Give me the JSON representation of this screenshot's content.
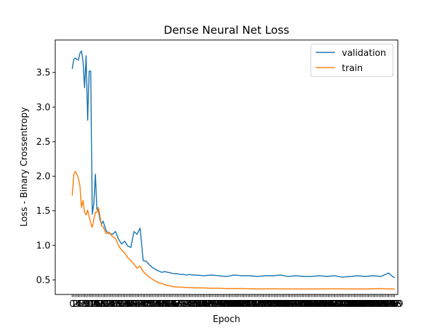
{
  "chart_data": {
    "type": "line",
    "title": "Dense Neural Net Loss",
    "xlabel": "Epoch",
    "ylabel": "Loss - Binary Crossentropy",
    "xlim": [
      -11,
      211
    ],
    "ylim": [
      0.29,
      3.97
    ],
    "yticks": [
      0.5,
      1.0,
      1.5,
      2.0,
      2.5,
      3.0,
      3.5
    ],
    "ytick_labels": [
      "0.5",
      "1.0",
      "1.5",
      "2.0",
      "2.5",
      "3.0",
      "3.5"
    ],
    "x_tick_every": 1,
    "grid": false,
    "legend_position": "top-right",
    "series": [
      {
        "name": "validation",
        "color": "#1f77b4",
        "x": [
          0,
          1,
          2,
          3,
          4,
          5,
          6,
          7,
          8,
          9,
          10,
          11,
          12,
          13,
          14,
          15,
          16,
          17,
          18,
          19,
          20,
          22,
          24,
          26,
          28,
          30,
          32,
          34,
          36,
          38,
          40,
          42,
          44,
          46,
          48,
          50,
          52,
          54,
          56,
          58,
          60,
          62,
          64,
          66,
          68,
          70,
          72,
          74,
          76,
          78,
          80,
          85,
          90,
          95,
          100,
          105,
          110,
          115,
          120,
          125,
          130,
          135,
          140,
          145,
          150,
          155,
          160,
          165,
          170,
          175,
          180,
          185,
          190,
          195,
          200,
          205,
          207,
          209
        ],
        "values": [
          3.55,
          3.69,
          3.71,
          3.69,
          3.68,
          3.78,
          3.81,
          3.66,
          3.28,
          3.74,
          2.81,
          3.52,
          3.52,
          1.45,
          1.6,
          2.03,
          1.52,
          1.5,
          1.37,
          1.31,
          1.35,
          1.21,
          1.17,
          1.16,
          1.2,
          1.09,
          1.02,
          1.06,
          0.99,
          0.97,
          1.2,
          1.16,
          1.25,
          0.78,
          0.77,
          0.72,
          0.68,
          0.65,
          0.63,
          0.61,
          0.62,
          0.61,
          0.6,
          0.59,
          0.59,
          0.58,
          0.58,
          0.57,
          0.58,
          0.57,
          0.57,
          0.56,
          0.57,
          0.56,
          0.55,
          0.57,
          0.56,
          0.56,
          0.55,
          0.56,
          0.56,
          0.57,
          0.55,
          0.56,
          0.55,
          0.55,
          0.56,
          0.55,
          0.56,
          0.54,
          0.55,
          0.56,
          0.55,
          0.56,
          0.55,
          0.6,
          0.56,
          0.53
        ]
      },
      {
        "name": "train",
        "color": "#ff7f0e",
        "x": [
          0,
          1,
          2,
          3,
          4,
          5,
          6,
          7,
          8,
          9,
          10,
          11,
          12,
          13,
          14,
          15,
          16,
          17,
          18,
          19,
          20,
          22,
          24,
          26,
          28,
          30,
          32,
          34,
          36,
          38,
          40,
          42,
          44,
          46,
          48,
          50,
          52,
          54,
          56,
          58,
          60,
          62,
          64,
          66,
          68,
          70,
          75,
          80,
          85,
          90,
          95,
          100,
          110,
          120,
          130,
          140,
          150,
          160,
          170,
          180,
          190,
          200,
          205,
          209
        ],
        "values": [
          1.72,
          2.02,
          2.07,
          2.03,
          1.97,
          1.86,
          1.55,
          1.65,
          1.48,
          1.44,
          1.51,
          1.41,
          1.32,
          1.26,
          1.38,
          1.48,
          1.48,
          1.55,
          1.42,
          1.28,
          1.27,
          1.17,
          1.19,
          1.13,
          1.1,
          1.0,
          0.93,
          0.89,
          0.82,
          0.78,
          0.73,
          0.67,
          0.7,
          0.62,
          0.58,
          0.54,
          0.51,
          0.48,
          0.46,
          0.45,
          0.43,
          0.42,
          0.41,
          0.4,
          0.4,
          0.395,
          0.39,
          0.385,
          0.385,
          0.38,
          0.38,
          0.375,
          0.375,
          0.37,
          0.372,
          0.37,
          0.37,
          0.37,
          0.372,
          0.37,
          0.37,
          0.375,
          0.37,
          0.37
        ]
      }
    ]
  }
}
